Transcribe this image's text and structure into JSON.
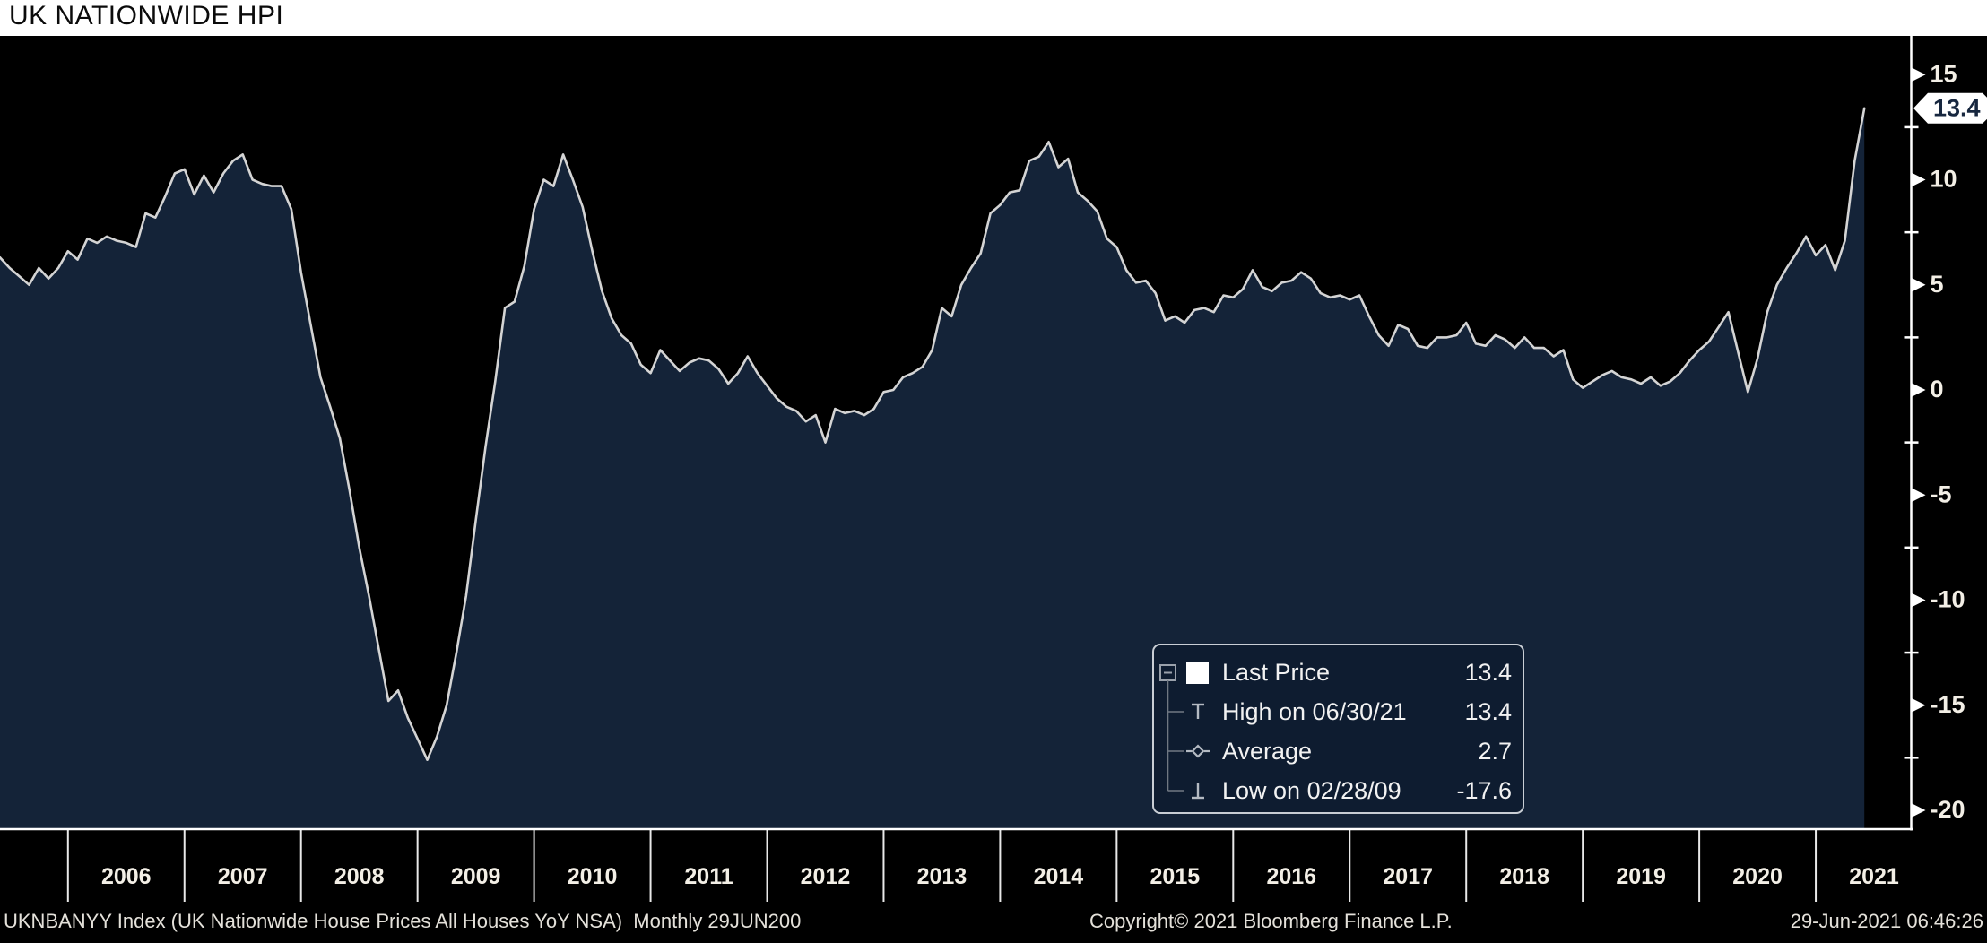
{
  "title": "UK NATIONWIDE HPI",
  "footer": {
    "left": "UKNBANYY Index (UK Nationwide House Prices All Houses YoY NSA)  Monthly 29JUN200",
    "copyright": "Copyright© 2021 Bloomberg Finance L.P.",
    "timestamp": "29-Jun-2021 06:46:26"
  },
  "legend": {
    "rows": [
      {
        "marker": "last-price-swatch",
        "label": "Last Price",
        "value": "13.4"
      },
      {
        "marker": "high-marker",
        "label": "High on 06/30/21",
        "value": "13.4"
      },
      {
        "marker": "average-marker",
        "label": "Average",
        "value": "2.7"
      },
      {
        "marker": "low-marker",
        "label": "Low on 02/28/09",
        "value": "-17.6"
      }
    ]
  },
  "last_price_tag": "13.4",
  "colors": {
    "chart_bg": "#000000",
    "area_fill": "#142338",
    "line": "#d4d4d4",
    "axis": "#ffffff",
    "tick_label": "#f3efe6",
    "tag_bg": "#ffffff",
    "tag_text": "#17273f",
    "legend_bg": "#0e1c30",
    "legend_border": "#c9ced5",
    "footer_text": "#e4e1da",
    "title_text": "#0b0b0b"
  },
  "chart_data": {
    "type": "area",
    "title": "UK NATIONWIDE HPI",
    "series_name": "UKNBANYY Index - UK Nationwide House Prices All Houses YoY NSA",
    "frequency": "monthly",
    "start": "2005-06",
    "end": "2021-06",
    "ylabel": "YoY %",
    "ylim": [
      -20.9,
      16.9
    ],
    "grid": "off",
    "legend_position": "bottom-right-box",
    "last_price": 13.4,
    "high": {
      "date": "06/30/21",
      "value": 13.4
    },
    "average": 2.7,
    "low": {
      "date": "02/28/09",
      "value": -17.6
    },
    "yticks": [
      15,
      10,
      5,
      0,
      -5,
      -10,
      -15,
      -20
    ],
    "yticks_minor": [
      12.5,
      7.5,
      2.5,
      -2.5,
      -7.5,
      -12.5,
      -17.5
    ],
    "year_labels": [
      "2006",
      "2007",
      "2008",
      "2009",
      "2010",
      "2011",
      "2012",
      "2013",
      "2014",
      "2015",
      "2016",
      "2017",
      "2018",
      "2019",
      "2020",
      "2021"
    ],
    "values": [
      6.3,
      5.8,
      5.4,
      5.0,
      5.8,
      5.3,
      5.8,
      6.6,
      6.2,
      7.2,
      7.0,
      7.3,
      7.1,
      7.0,
      6.8,
      8.4,
      8.2,
      9.2,
      10.3,
      10.5,
      9.3,
      10.2,
      9.4,
      10.3,
      10.9,
      11.2,
      10.0,
      9.8,
      9.7,
      9.7,
      8.6,
      5.6,
      3.1,
      0.6,
      -0.8,
      -2.3,
      -4.8,
      -7.5,
      -9.8,
      -12.3,
      -14.8,
      -14.3,
      -15.6,
      -16.6,
      -17.6,
      -16.5,
      -15.0,
      -12.5,
      -9.8,
      -6.2,
      -2.7,
      0.4,
      3.9,
      4.2,
      5.9,
      8.6,
      10.0,
      9.7,
      11.2,
      10.0,
      8.7,
      6.6,
      4.7,
      3.4,
      2.6,
      2.2,
      1.2,
      0.8,
      1.9,
      1.4,
      0.9,
      1.3,
      1.5,
      1.4,
      1.0,
      0.3,
      0.8,
      1.6,
      0.8,
      0.2,
      -0.4,
      -0.8,
      -1.0,
      -1.5,
      -1.2,
      -2.5,
      -0.9,
      -1.1,
      -1.0,
      -1.2,
      -0.9,
      -0.1,
      0.0,
      0.6,
      0.8,
      1.1,
      1.9,
      3.9,
      3.5,
      5.0,
      5.8,
      6.5,
      8.4,
      8.8,
      9.4,
      9.5,
      10.9,
      11.1,
      11.8,
      10.6,
      11.0,
      9.4,
      9.0,
      8.5,
      7.2,
      6.8,
      5.7,
      5.1,
      5.2,
      4.6,
      3.3,
      3.5,
      3.2,
      3.8,
      3.9,
      3.7,
      4.5,
      4.4,
      4.8,
      5.7,
      4.9,
      4.7,
      5.1,
      5.2,
      5.6,
      5.3,
      4.6,
      4.4,
      4.5,
      4.3,
      4.5,
      3.5,
      2.6,
      2.1,
      3.1,
      2.9,
      2.1,
      2.0,
      2.5,
      2.5,
      2.6,
      3.2,
      2.2,
      2.1,
      2.6,
      2.4,
      2.0,
      2.5,
      2.0,
      2.0,
      1.6,
      1.9,
      0.5,
      0.1,
      0.4,
      0.7,
      0.9,
      0.6,
      0.5,
      0.3,
      0.6,
      0.2,
      0.4,
      0.8,
      1.4,
      1.9,
      2.3,
      3.0,
      3.7,
      1.8,
      -0.1,
      1.5,
      3.7,
      5.0,
      5.8,
      6.5,
      7.3,
      6.4,
      6.9,
      5.7,
      7.1,
      10.9,
      13.4
    ]
  }
}
